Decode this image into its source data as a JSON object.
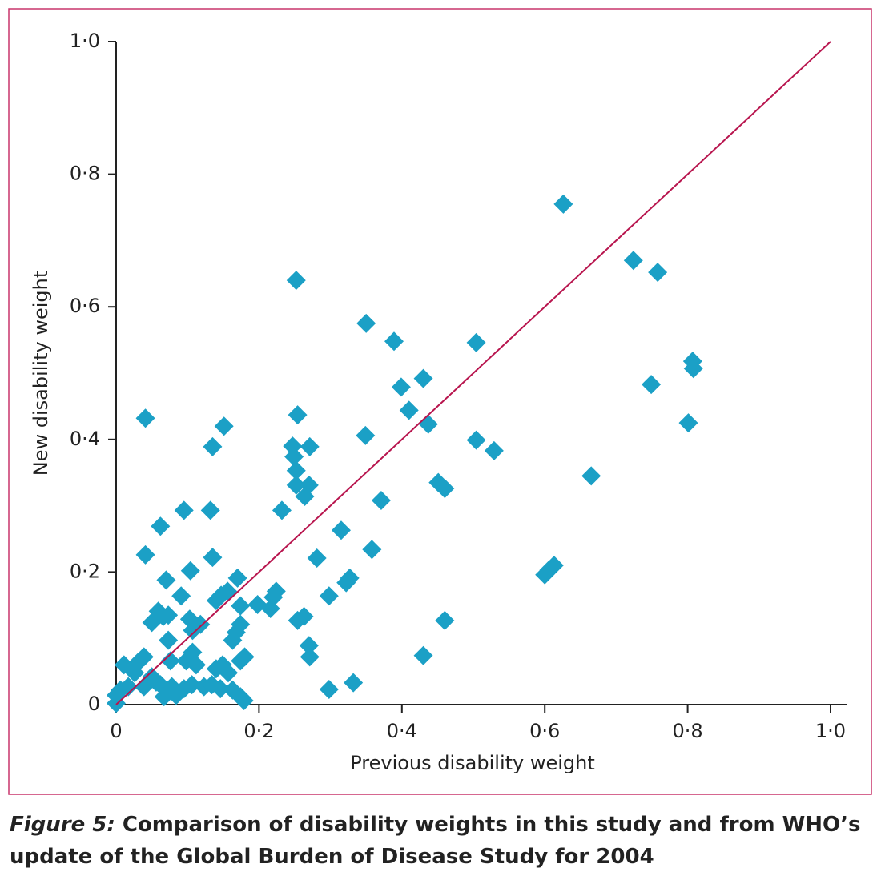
{
  "chart_data": {
    "type": "scatter",
    "x_label": "Previous disability weight",
    "y_label": "New disability weight",
    "color": "#1ba0c6",
    "line_color": "#b8154e",
    "xlim": [
      0,
      1.0
    ],
    "ylim": [
      0,
      1.0
    ],
    "xticks": [
      0,
      {
        "value": 0.2,
        "label": "0·2"
      },
      {
        "value": 0.4,
        "label": "0·4"
      },
      {
        "value": 0.6,
        "label": "0·6"
      },
      {
        "value": 0.8,
        "label": "0·8"
      },
      {
        "value": 1.0,
        "label": "1·0"
      }
    ],
    "yticks": [
      0,
      {
        "value": 0.2,
        "label": "0·2"
      },
      {
        "value": 0.4,
        "label": "0·4"
      },
      {
        "value": 0.6,
        "label": "0·6"
      },
      {
        "value": 0.8,
        "label": "0·8"
      },
      {
        "value": 1.0,
        "label": "1·0"
      }
    ],
    "x": [
      0.626,
      0.724,
      0.758,
      0.807,
      0.808,
      0.801,
      0.749,
      0.665,
      0.6,
      0.606,
      0.613,
      0.504,
      0.504,
      0.529,
      0.46,
      0.451,
      0.46,
      0.43,
      0.437,
      0.43,
      0.399,
      0.41,
      0.389,
      0.35,
      0.349,
      0.371,
      0.358,
      0.315,
      0.327,
      0.322,
      0.332,
      0.298,
      0.298,
      0.281,
      0.271,
      0.27,
      0.263,
      0.254,
      0.252,
      0.254,
      0.247,
      0.249,
      0.252,
      0.252,
      0.27,
      0.264,
      0.271,
      0.232,
      0.224,
      0.22,
      0.216,
      0.198,
      0.174,
      0.17,
      0.151,
      0.135,
      0.132,
      0.135,
      0.156,
      0.147,
      0.14,
      0.041,
      0.062,
      0.095,
      0.041,
      0.07,
      0.104,
      0.091,
      0.059,
      0.066,
      0.073,
      0.103,
      0.05,
      0.107,
      0.118,
      0.073,
      0.163,
      0.168,
      0.174,
      0.174,
      0.18,
      0.107,
      0.098,
      0.076,
      0.14,
      0.149,
      0.157,
      0.011,
      0.03,
      0.039,
      0.026,
      0.05,
      0.062,
      0.078,
      0.095,
      0.106,
      0.123,
      0.134,
      0.067,
      0.084,
      0.0,
      0.006,
      0.017,
      0.0,
      0.163,
      0.174,
      0.179,
      0.039,
      0.056,
      0.112,
      0.146
    ],
    "values": [
      0.755,
      0.67,
      0.652,
      0.518,
      0.507,
      0.425,
      0.483,
      0.345,
      0.196,
      0.203,
      0.21,
      0.546,
      0.399,
      0.383,
      0.127,
      0.335,
      0.326,
      0.074,
      0.423,
      0.492,
      0.479,
      0.444,
      0.548,
      0.575,
      0.406,
      0.308,
      0.234,
      0.263,
      0.191,
      0.184,
      0.033,
      0.023,
      0.164,
      0.221,
      0.072,
      0.089,
      0.133,
      0.127,
      0.64,
      0.437,
      0.39,
      0.374,
      0.353,
      0.331,
      0.331,
      0.314,
      0.389,
      0.293,
      0.171,
      0.162,
      0.145,
      0.151,
      0.149,
      0.191,
      0.42,
      0.389,
      0.293,
      0.222,
      0.171,
      0.165,
      0.157,
      0.432,
      0.269,
      0.293,
      0.226,
      0.188,
      0.202,
      0.164,
      0.141,
      0.133,
      0.135,
      0.129,
      0.124,
      0.112,
      0.121,
      0.097,
      0.097,
      0.109,
      0.121,
      0.066,
      0.072,
      0.079,
      0.066,
      0.066,
      0.054,
      0.06,
      0.048,
      0.06,
      0.063,
      0.072,
      0.048,
      0.042,
      0.03,
      0.027,
      0.024,
      0.03,
      0.027,
      0.03,
      0.012,
      0.014,
      0.014,
      0.022,
      0.027,
      0.002,
      0.022,
      0.012,
      0.006,
      0.027,
      0.034,
      0.06,
      0.024
    ]
  },
  "caption": {
    "label": "Figure 5:",
    "text": "Comparison of disability weights in this study and from WHO’s update of the Global Burden of Disease Study for 2004"
  }
}
